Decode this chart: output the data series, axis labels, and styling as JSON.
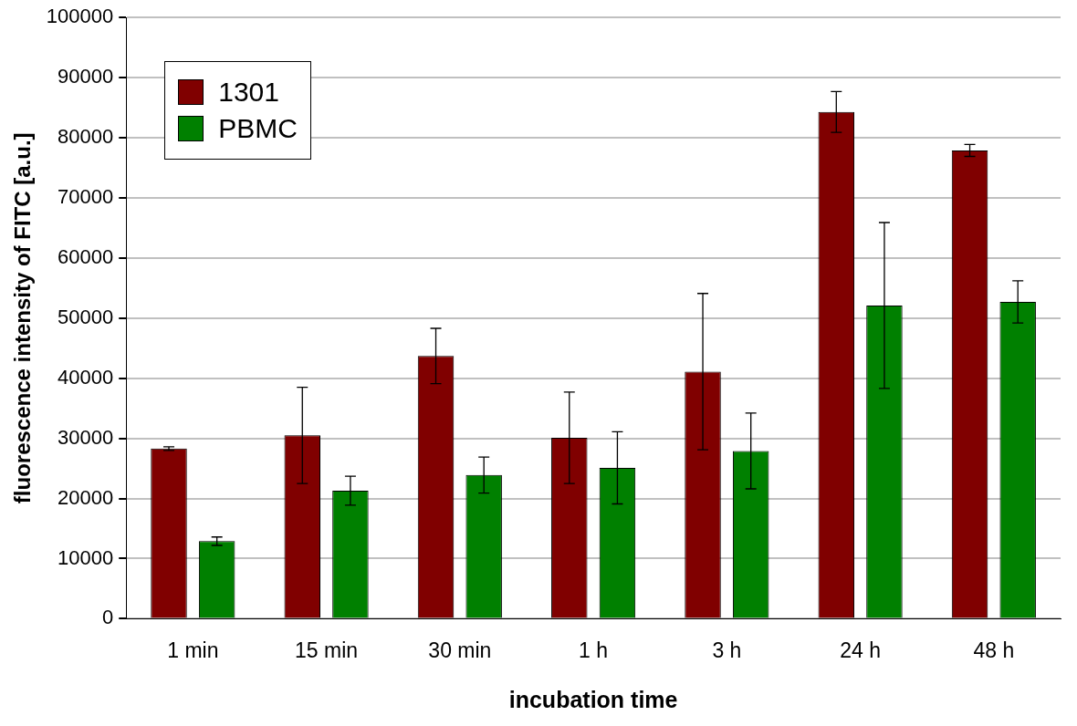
{
  "chart_data": {
    "type": "bar",
    "xlabel": "incubation time",
    "ylabel": "fluorescence intensity of FITC [a.u.]",
    "categories": [
      "1 min",
      "15 min",
      "30 min",
      "1 h",
      "3 h",
      "24 h",
      "48 h"
    ],
    "series": [
      {
        "name": "1301",
        "color": "#800000",
        "values": [
          28300,
          30500,
          43700,
          30100,
          41100,
          84300,
          77900
        ],
        "errors": [
          300,
          8000,
          4600,
          7600,
          13000,
          3400,
          1000
        ]
      },
      {
        "name": "PBMC",
        "color": "#008000",
        "values": [
          12900,
          21300,
          23900,
          25100,
          27900,
          52100,
          52700
        ],
        "errors": [
          700,
          2400,
          3000,
          6000,
          6300,
          13800,
          3500
        ]
      }
    ],
    "ylim": [
      0,
      100000
    ],
    "yticks": [
      0,
      10000,
      20000,
      30000,
      40000,
      50000,
      60000,
      70000,
      80000,
      90000,
      100000
    ],
    "grid": "y",
    "legend": "top left"
  }
}
